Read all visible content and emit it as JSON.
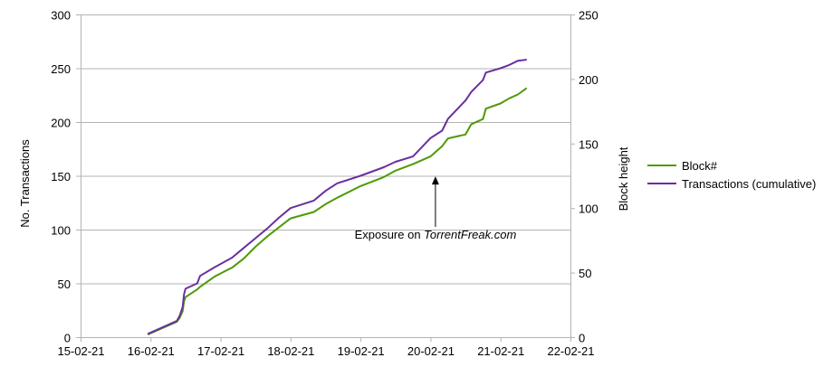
{
  "chart_data": {
    "type": "line",
    "ylabel": "No. Transactions",
    "y2label": "Block height",
    "ylim": [
      0,
      300
    ],
    "y2lim": [
      0,
      250
    ],
    "yticks": [
      0,
      50,
      100,
      150,
      200,
      250,
      300
    ],
    "y2ticks": [
      0,
      50,
      100,
      150,
      200,
      250
    ],
    "xticks": [
      "15-02-21",
      "16-02-21",
      "17-02-21",
      "18-02-21",
      "19-02-21",
      "20-02-21",
      "21-02-21",
      "22-02-21"
    ],
    "grid": true,
    "legend_position": "right",
    "colors": {
      "block": "#4e9a06",
      "transactions": "#6a2fa0",
      "grid": "#b3b3b3",
      "axis": "#b3b3b3"
    },
    "annotation": {
      "text_prefix": "Exposure on ",
      "text_emph": "TorrentFreak.com",
      "date": "20-02-21",
      "value_y2": 127,
      "arrow_tip_y2": 126
    },
    "series": [
      {
        "name": "Block#",
        "axis": "right",
        "x": [
          "2021-02-15 23:00",
          "2021-02-16 09:00",
          "2021-02-16 10:00",
          "2021-02-16 11:00",
          "2021-02-16 11:30",
          "2021-02-16 12:00",
          "2021-02-16 16:00",
          "2021-02-16 17:00",
          "2021-02-16 22:00",
          "2021-02-17 04:00",
          "2021-02-17 08:00",
          "2021-02-17 12:00",
          "2021-02-17 16:00",
          "2021-02-17 20:00",
          "2021-02-18 00:00",
          "2021-02-18 08:00",
          "2021-02-18 12:00",
          "2021-02-18 16:00",
          "2021-02-19 00:00",
          "2021-02-19 08:00",
          "2021-02-19 12:00",
          "2021-02-19 18:00",
          "2021-02-20 00:00",
          "2021-02-20 04:00",
          "2021-02-20 06:00",
          "2021-02-20 12:00",
          "2021-02-20 14:00",
          "2021-02-20 18:00",
          "2021-02-20 19:00",
          "2021-02-21 00:00",
          "2021-02-21 03:00",
          "2021-02-21 06:00",
          "2021-02-21 09:00"
        ],
        "values": [
          2,
          12,
          15,
          20,
          28,
          31,
          37,
          39,
          47,
          54,
          61,
          70,
          78,
          85,
          92,
          97,
          103,
          108,
          117,
          124,
          129,
          134,
          140,
          148,
          154,
          157,
          165,
          169,
          177,
          181,
          185,
          188,
          193
        ]
      },
      {
        "name": "Transactions (cumulative)",
        "axis": "left",
        "x": [
          "2021-02-15 23:00",
          "2021-02-16 09:00",
          "2021-02-16 10:00",
          "2021-02-16 11:00",
          "2021-02-16 11:30",
          "2021-02-16 12:00",
          "2021-02-16 16:00",
          "2021-02-16 17:00",
          "2021-02-16 22:00",
          "2021-02-17 04:00",
          "2021-02-17 08:00",
          "2021-02-17 12:00",
          "2021-02-17 16:00",
          "2021-02-17 20:00",
          "2021-02-18 00:00",
          "2021-02-18 08:00",
          "2021-02-18 12:00",
          "2021-02-18 16:00",
          "2021-02-19 00:00",
          "2021-02-19 08:00",
          "2021-02-19 12:00",
          "2021-02-19 18:00",
          "2021-02-20 00:00",
          "2021-02-20 04:00",
          "2021-02-20 06:00",
          "2021-02-20 12:00",
          "2021-02-20 14:00",
          "2021-02-20 18:00",
          "2021-02-20 19:00",
          "2021-02-21 00:00",
          "2021-02-21 03:00",
          "2021-02-21 06:00",
          "2021-02-21 09:00"
        ],
        "values": [
          3,
          15,
          20,
          28,
          40,
          45,
          50,
          57,
          65,
          74,
          83,
          92,
          101,
          111,
          120,
          127,
          136,
          143,
          150,
          158,
          163,
          168,
          185,
          192,
          203,
          220,
          228,
          239,
          246,
          250,
          253,
          257,
          258
        ]
      }
    ]
  },
  "legend": {
    "block_label": "Block#",
    "transactions_label": "Transactions (cumulative)"
  }
}
